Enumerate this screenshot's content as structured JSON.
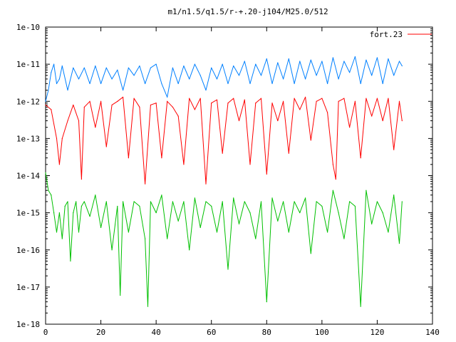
{
  "chart_data": {
    "type": "line",
    "title": "m1/n1.5/q1.5/r-+.20-j104/M25.0/512",
    "xlabel": "",
    "ylabel": "",
    "xlim": [
      0,
      140
    ],
    "ylim": [
      1e-18,
      1e-10
    ],
    "yscale": "log",
    "x_ticks": [
      0,
      20,
      40,
      60,
      80,
      100,
      120,
      140
    ],
    "x_tick_labels": [
      "0",
      "20",
      "40",
      "60",
      "80",
      "100",
      "120",
      "140"
    ],
    "y_ticks": [
      1e-18,
      1e-17,
      1e-16,
      1e-15,
      1e-14,
      1e-13,
      1e-12,
      1e-11,
      1e-10
    ],
    "y_tick_labels": [
      "1e-18",
      "1e-17",
      "1e-16",
      "1e-15",
      "1e-14",
      "1e-13",
      "1e-12",
      "1e-11",
      "1e-10"
    ],
    "grid": false,
    "legend": {
      "placement": "top-right",
      "entries": [
        "fort.23"
      ]
    },
    "series": [
      {
        "name": "fort.23",
        "color": "#ff0000",
        "x": [
          0,
          2,
          4,
          5,
          6,
          8,
          10,
          12,
          13,
          14,
          16,
          18,
          20,
          22,
          24,
          26,
          28,
          30,
          32,
          34,
          36,
          38,
          40,
          42,
          44,
          46,
          48,
          50,
          52,
          54,
          56,
          58,
          60,
          62,
          64,
          66,
          68,
          70,
          72,
          74,
          76,
          78,
          80,
          82,
          84,
          86,
          88,
          90,
          92,
          94,
          96,
          98,
          100,
          102,
          104,
          105,
          106,
          108,
          110,
          112,
          114,
          116,
          118,
          120,
          122,
          124,
          126,
          128,
          129
        ],
        "y": [
          8e-13,
          6e-13,
          1e-13,
          2e-14,
          1e-13,
          3e-13,
          8e-13,
          3e-13,
          8e-15,
          7e-13,
          1e-12,
          2e-13,
          1e-12,
          6e-14,
          8e-13,
          1e-12,
          1.3e-12,
          3e-14,
          1.2e-12,
          7e-13,
          6e-15,
          8e-13,
          9e-13,
          3e-14,
          1e-12,
          7e-13,
          4e-13,
          2e-14,
          1.2e-12,
          6e-13,
          1.2e-12,
          6e-15,
          9e-13,
          1.1e-12,
          4e-14,
          9e-13,
          1.2e-12,
          3e-13,
          1.1e-12,
          2e-14,
          9e-13,
          1.2e-12,
          1.1e-14,
          9e-13,
          3e-13,
          1e-12,
          4e-14,
          1.2e-12,
          6e-13,
          1.3e-12,
          9e-14,
          1e-12,
          1.2e-12,
          5e-13,
          2e-14,
          8e-15,
          1e-12,
          1.2e-12,
          2e-13,
          1e-12,
          3e-14,
          1.2e-12,
          4e-13,
          1.2e-12,
          3e-13,
          1.2e-12,
          5e-14,
          1e-12,
          3e-13
        ]
      },
      {
        "name": "",
        "color": "#0080ff",
        "x": [
          0,
          1,
          2,
          3,
          4,
          5,
          6,
          8,
          10,
          12,
          14,
          16,
          18,
          20,
          22,
          24,
          26,
          28,
          30,
          32,
          34,
          36,
          38,
          40,
          42,
          44,
          46,
          48,
          50,
          52,
          54,
          56,
          58,
          60,
          62,
          64,
          66,
          68,
          70,
          72,
          74,
          76,
          78,
          80,
          82,
          84,
          86,
          88,
          90,
          92,
          94,
          96,
          98,
          100,
          102,
          104,
          106,
          108,
          110,
          112,
          114,
          116,
          118,
          120,
          122,
          124,
          126,
          128,
          129
        ],
        "y": [
          1e-12,
          2e-12,
          6e-12,
          1e-11,
          3e-12,
          4e-12,
          9e-12,
          2e-12,
          8e-12,
          4e-12,
          8e-12,
          3e-12,
          9e-12,
          3e-12,
          8e-12,
          4e-12,
          7e-12,
          2e-12,
          8e-12,
          5e-12,
          9e-12,
          3e-12,
          8e-12,
          1e-11,
          3e-12,
          1.3e-12,
          8e-12,
          3e-12,
          9e-12,
          4e-12,
          1e-11,
          5e-12,
          2e-12,
          8e-12,
          4e-12,
          1e-11,
          3e-12,
          9e-12,
          5e-12,
          1.2e-11,
          3e-12,
          1e-11,
          5e-12,
          1.4e-11,
          3e-12,
          1.1e-11,
          4e-12,
          1.4e-11,
          3e-12,
          1.2e-11,
          4e-12,
          1.3e-11,
          5e-12,
          1.2e-11,
          3e-12,
          1.5e-11,
          4e-12,
          1.2e-11,
          6e-12,
          1.6e-11,
          3e-12,
          1.3e-11,
          5e-12,
          1.5e-11,
          3e-12,
          1.4e-11,
          5e-12,
          1.2e-11,
          9e-12
        ]
      },
      {
        "name": "",
        "color": "#00c000",
        "x": [
          0,
          1,
          2,
          3,
          4,
          5,
          6,
          7,
          8,
          9,
          10,
          11,
          12,
          13,
          14,
          16,
          18,
          20,
          22,
          24,
          26,
          27,
          28,
          30,
          32,
          34,
          36,
          37,
          38,
          40,
          42,
          44,
          46,
          48,
          50,
          52,
          54,
          56,
          58,
          60,
          62,
          64,
          66,
          68,
          70,
          72,
          74,
          76,
          78,
          80,
          82,
          84,
          86,
          88,
          90,
          92,
          94,
          96,
          98,
          100,
          102,
          104,
          106,
          108,
          110,
          112,
          114,
          116,
          118,
          120,
          122,
          124,
          126,
          128,
          129
        ],
        "y": [
          1.2e-14,
          4e-15,
          3e-15,
          1e-15,
          3e-16,
          1e-15,
          2e-16,
          1.5e-15,
          2e-15,
          5e-17,
          1e-15,
          2e-15,
          3e-16,
          1.5e-15,
          2e-15,
          8e-16,
          3e-15,
          4e-16,
          2e-15,
          1e-16,
          1.5e-15,
          6e-18,
          2e-15,
          3e-16,
          2e-15,
          1.5e-15,
          2e-16,
          3e-18,
          2e-15,
          1e-15,
          3e-15,
          2e-16,
          2e-15,
          6e-16,
          2e-15,
          1e-16,
          2.5e-15,
          4e-16,
          2e-15,
          1.5e-15,
          3e-16,
          2e-15,
          3e-17,
          2.5e-15,
          5e-16,
          2e-15,
          1e-15,
          2e-16,
          2e-15,
          4e-18,
          2.5e-15,
          6e-16,
          2e-15,
          3e-16,
          2e-15,
          1e-15,
          2.5e-15,
          8e-17,
          2e-15,
          1.5e-15,
          3e-16,
          4e-15,
          1e-15,
          2e-16,
          2e-15,
          1.5e-15,
          3e-18,
          4e-15,
          5e-16,
          2e-15,
          1e-15,
          3e-16,
          3e-15,
          1.5e-16,
          2e-15
        ]
      }
    ]
  }
}
